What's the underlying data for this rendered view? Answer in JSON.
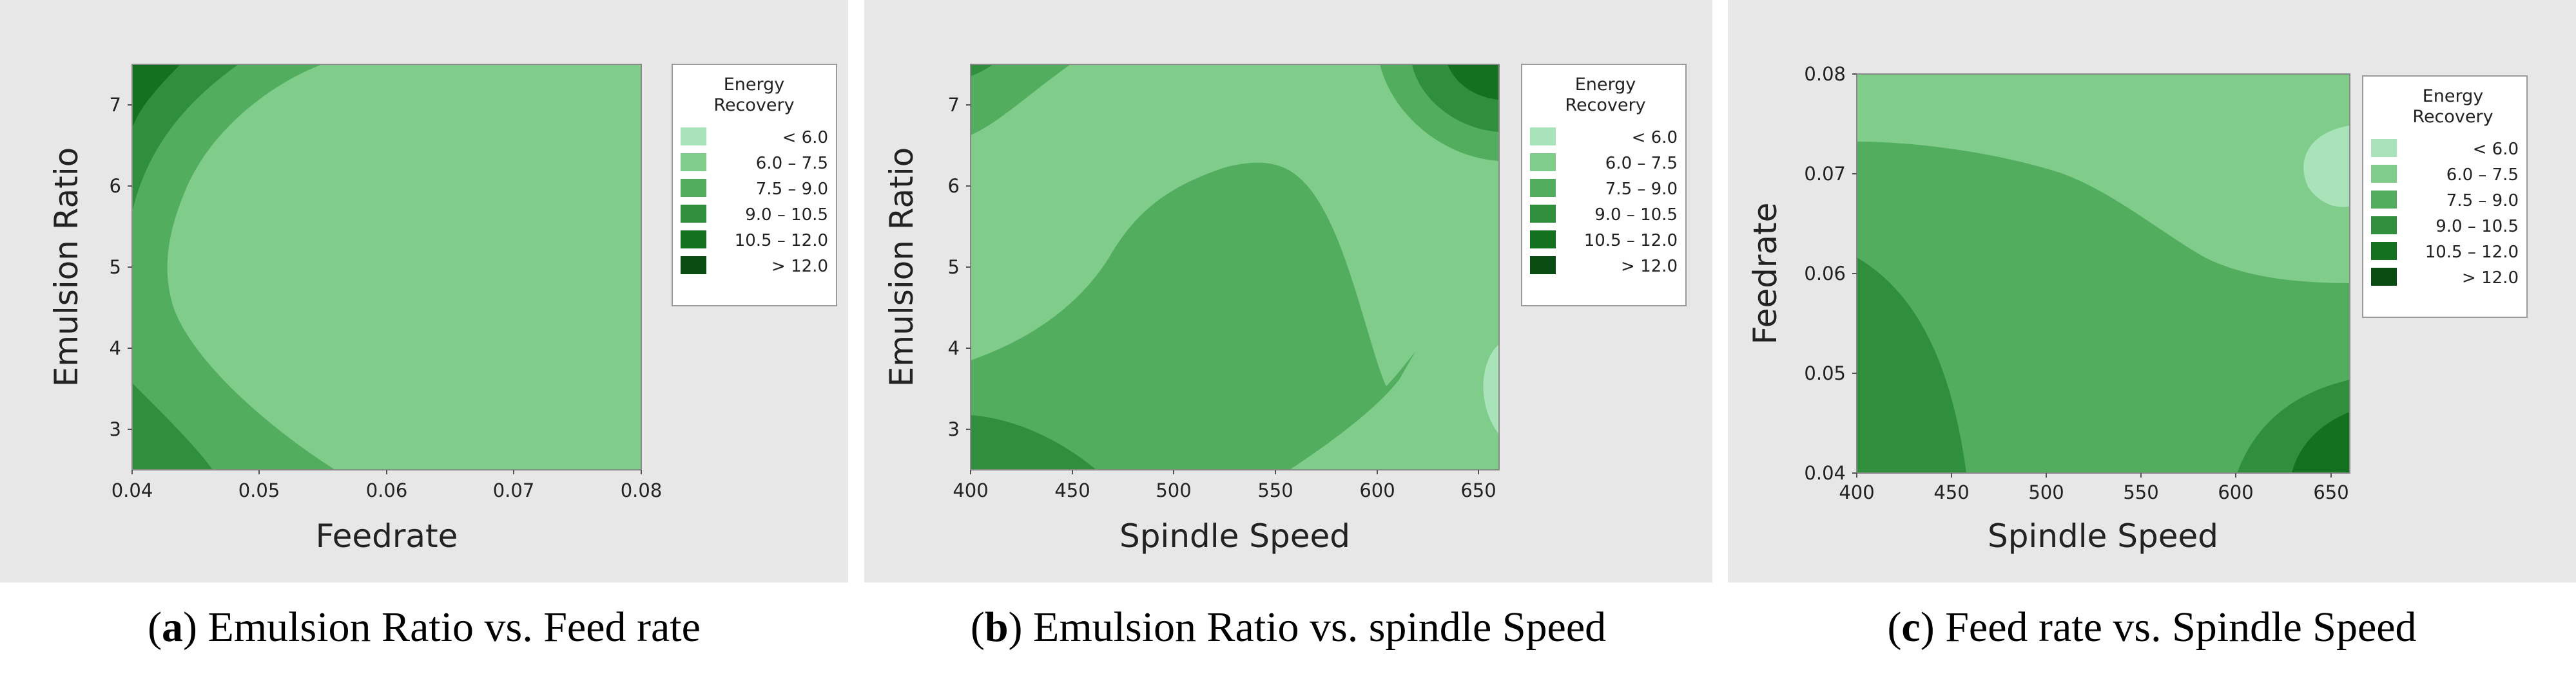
{
  "chart_data": [
    {
      "type": "contour",
      "panel": "a",
      "xlabel": "Feedrate",
      "ylabel": "Emulsion Ratio",
      "xlim": [
        0.04,
        0.08
      ],
      "ylim": [
        2.5,
        7.5
      ],
      "xticks": [
        "0.04",
        "0.05",
        "0.06",
        "0.07",
        "0.08"
      ],
      "yticks": [
        "3",
        "4",
        "5",
        "6",
        "7"
      ],
      "legend_title": [
        "Energy",
        "Recovery"
      ],
      "legend_position": "right",
      "levels": [
        {
          "label": "< 6.0",
          "color": "#a9e3b9"
        },
        {
          "label": "6.0 – 7.5",
          "color": "#7fcc8b"
        },
        {
          "label": "7.5 – 9.0",
          "color": "#52ad5e"
        },
        {
          "label": "9.0 – 10.5",
          "color": "#2f8f3c"
        },
        {
          "label": "10.5 – 12.0",
          "color": "#14711f"
        },
        {
          "label": "> 12.0",
          "color": "#0a4d12"
        }
      ],
      "caption_letter": "a",
      "caption_text": "Emulsion Ratio vs. Feed rate"
    },
    {
      "type": "contour",
      "panel": "b",
      "xlabel": "Spindle Speed",
      "ylabel": "Emulsion Ratio",
      "xlim": [
        400,
        660
      ],
      "ylim": [
        2.5,
        7.5
      ],
      "xticks": [
        "400",
        "450",
        "500",
        "550",
        "600",
        "650"
      ],
      "yticks": [
        "3",
        "4",
        "5",
        "6",
        "7"
      ],
      "legend_title": [
        "Energy",
        "Recovery"
      ],
      "legend_position": "right",
      "levels": [
        {
          "label": "< 6.0",
          "color": "#a9e3b9"
        },
        {
          "label": "6.0 – 7.5",
          "color": "#7fcc8b"
        },
        {
          "label": "7.5 – 9.0",
          "color": "#52ad5e"
        },
        {
          "label": "9.0 – 10.5",
          "color": "#2f8f3c"
        },
        {
          "label": "10.5 – 12.0",
          "color": "#14711f"
        },
        {
          "label": "> 12.0",
          "color": "#0a4d12"
        }
      ],
      "caption_letter": "b",
      "caption_text": "Emulsion Ratio vs. spindle Speed"
    },
    {
      "type": "contour",
      "panel": "c",
      "xlabel": "Spindle Speed",
      "ylabel": "Feedrate",
      "xlim": [
        400,
        660
      ],
      "ylim": [
        0.04,
        0.08
      ],
      "xticks": [
        "400",
        "450",
        "500",
        "550",
        "600",
        "650"
      ],
      "yticks": [
        "0.04",
        "0.05",
        "0.06",
        "0.07",
        "0.08"
      ],
      "legend_title": [
        "Energy",
        "Recovery"
      ],
      "legend_position": "right",
      "levels": [
        {
          "label": "< 6.0",
          "color": "#a9e3b9"
        },
        {
          "label": "6.0 – 7.5",
          "color": "#7fcc8b"
        },
        {
          "label": "7.5 – 9.0",
          "color": "#52ad5e"
        },
        {
          "label": "9.0 – 10.5",
          "color": "#2f8f3c"
        },
        {
          "label": "10.5 – 12.0",
          "color": "#14711f"
        },
        {
          "label": "> 12.0",
          "color": "#0a4d12"
        }
      ],
      "caption_letter": "c",
      "caption_text": "Feed rate vs. Spindle Speed"
    }
  ]
}
